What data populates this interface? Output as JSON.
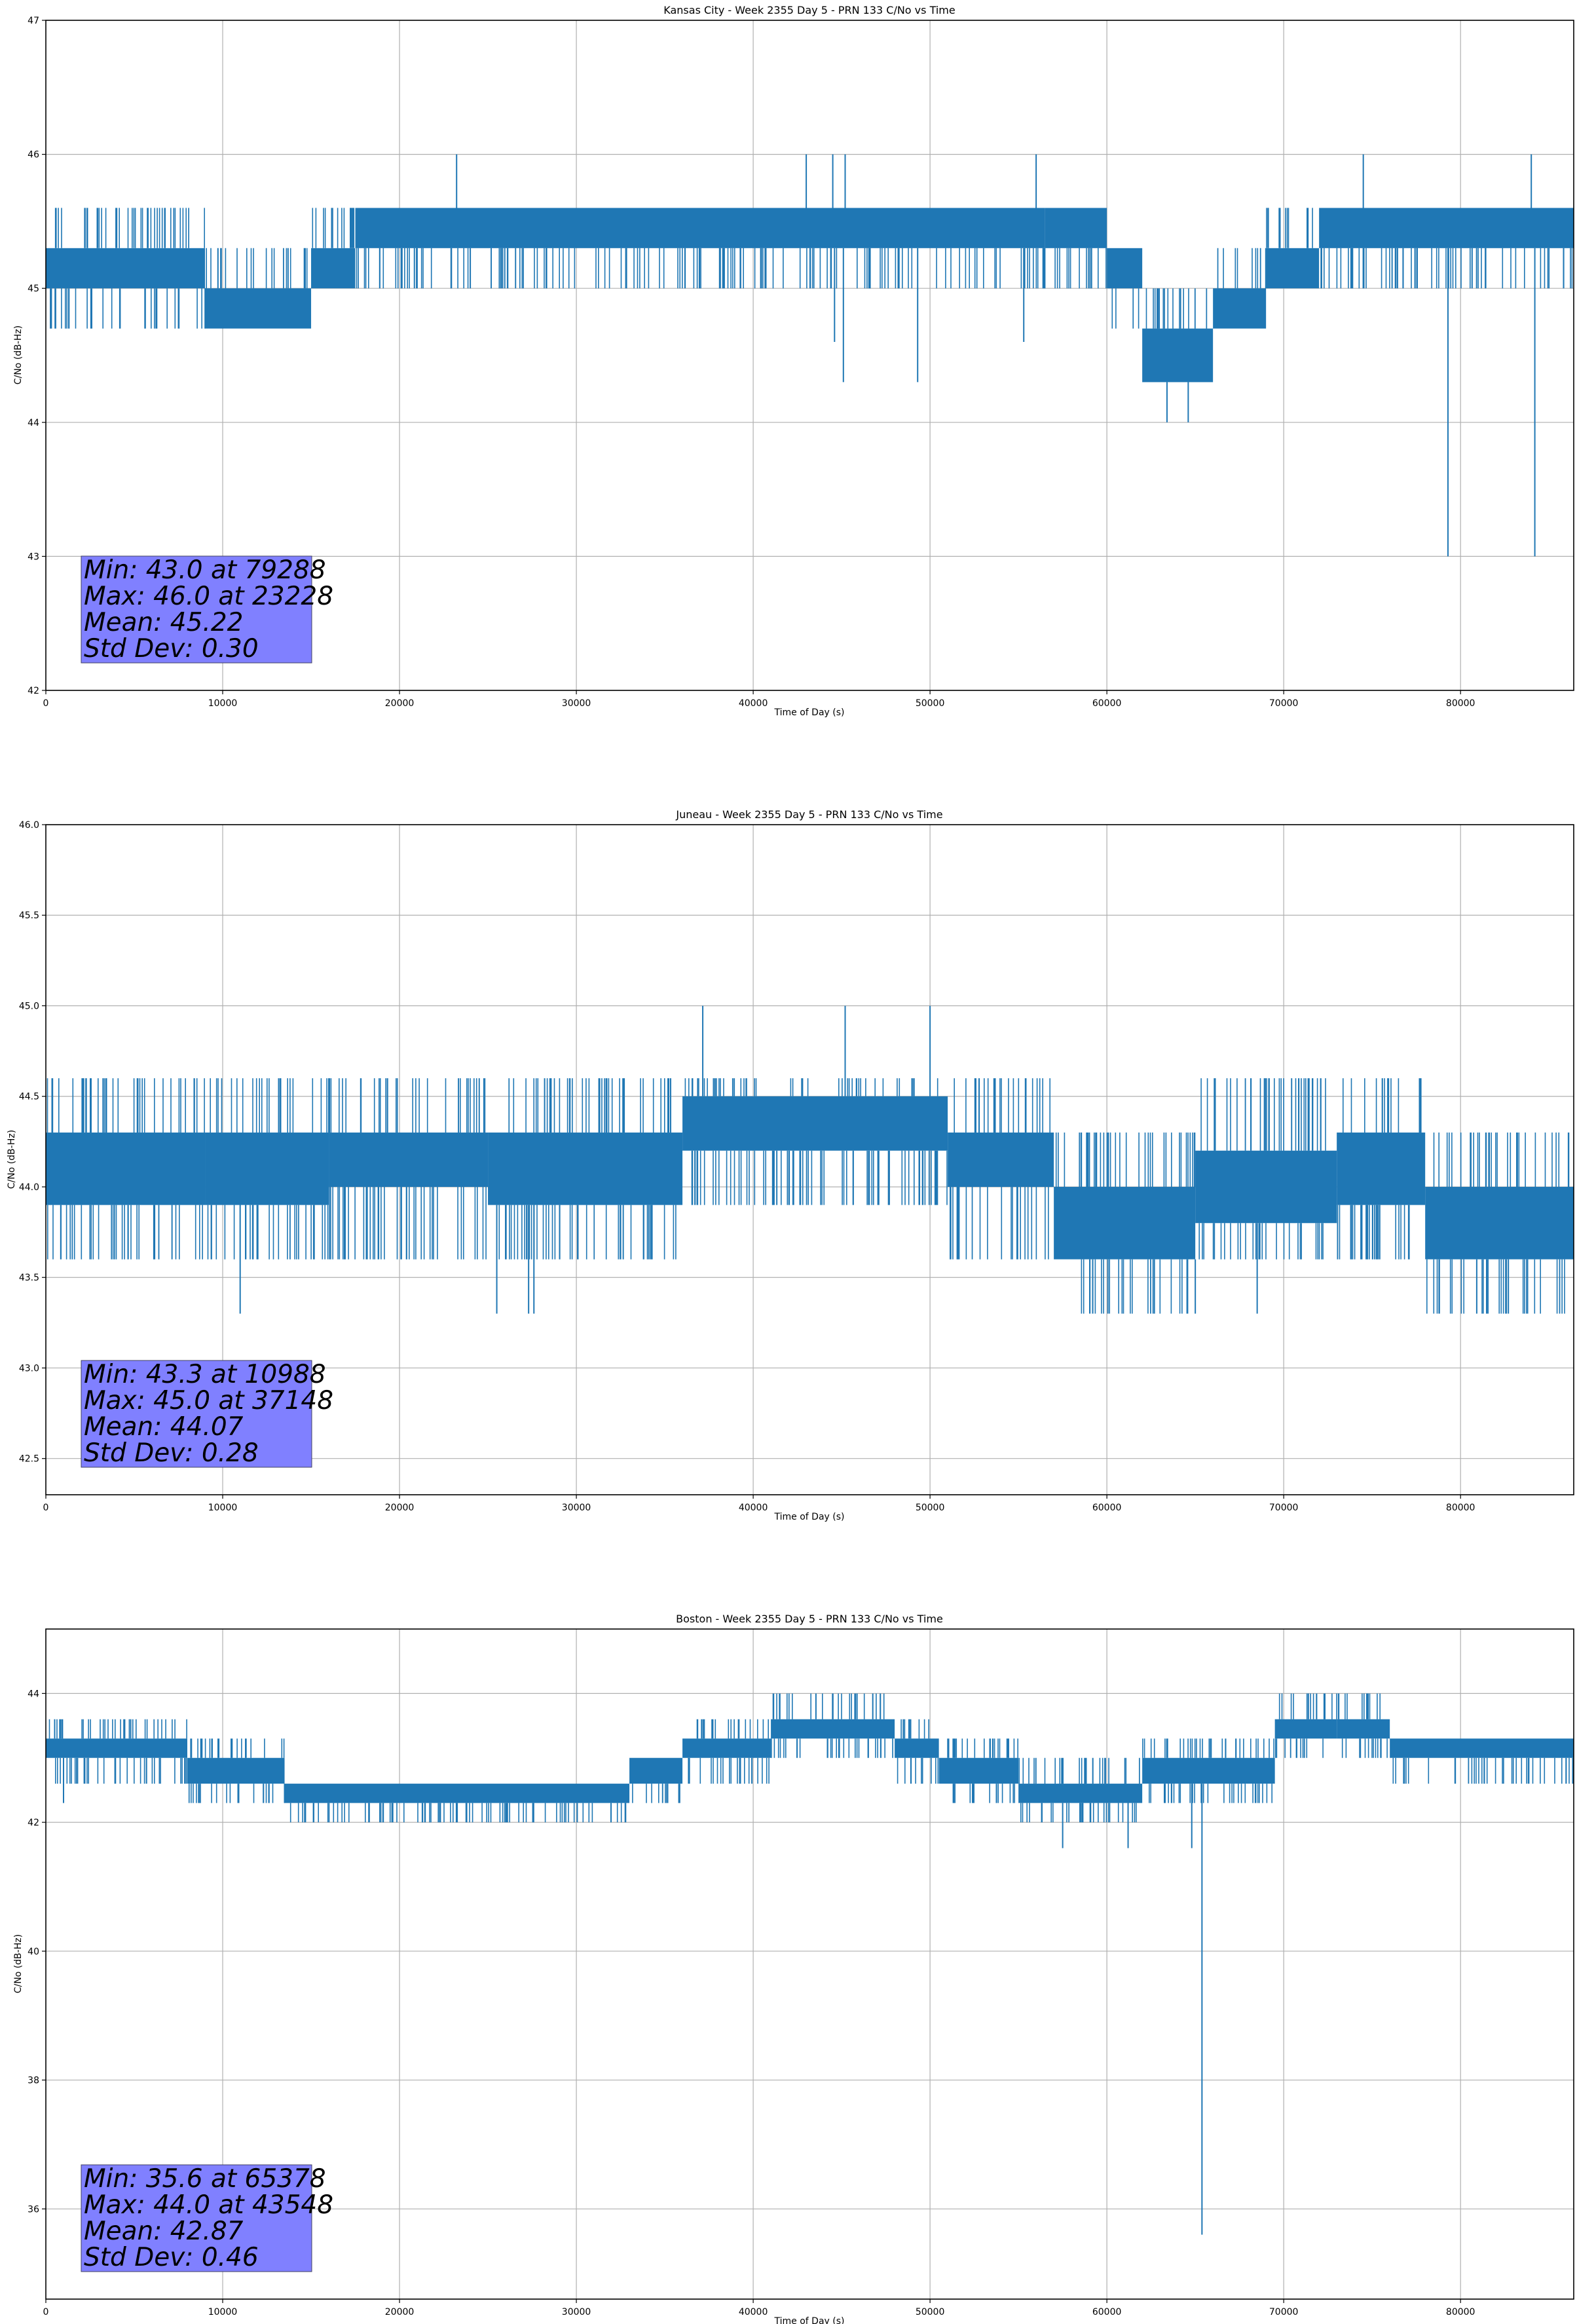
{
  "chart_data": [
    {
      "type": "line",
      "title": "Kansas City - Week 2355 Day 5 - PRN 133 C/No vs Time",
      "xlabel": "Time of Day (s)",
      "ylabel": "C/No (dB-Hz)",
      "xlim": [
        0,
        86400
      ],
      "ylim": [
        42,
        47
      ],
      "xticks": [
        0,
        10000,
        20000,
        30000,
        40000,
        50000,
        60000,
        70000,
        80000
      ],
      "yticks": [
        42,
        43,
        44,
        45,
        46,
        47
      ],
      "ytick_labels": [
        "42",
        "43",
        "44",
        "45",
        "46",
        "47"
      ],
      "grid": true,
      "color": "#1f77b4",
      "quantum": 0.3,
      "bands": [
        {
          "x": [
            0,
            9000
          ],
          "lo": 45.0,
          "hi": 45.3,
          "up": 45.6,
          "down": 44.7
        },
        {
          "x": [
            9000,
            15000
          ],
          "lo": 44.7,
          "hi": 45.0,
          "up": 45.3,
          "down": 44.7
        },
        {
          "x": [
            15000,
            17500
          ],
          "lo": 45.0,
          "hi": 45.3,
          "up": 45.6,
          "down": 45.0
        },
        {
          "x": [
            17500,
            56500
          ],
          "lo": 45.3,
          "hi": 45.6,
          "up": 45.6,
          "down": 45.0
        },
        {
          "x": [
            56500,
            60000
          ],
          "lo": 45.3,
          "hi": 45.6,
          "up": 45.6,
          "down": 45.0
        },
        {
          "x": [
            60000,
            62000
          ],
          "lo": 45.0,
          "hi": 45.3,
          "up": 45.3,
          "down": 44.7
        },
        {
          "x": [
            62000,
            66000
          ],
          "lo": 44.3,
          "hi": 44.7,
          "up": 45.0,
          "down": 44.3
        },
        {
          "x": [
            66000,
            69000
          ],
          "lo": 44.7,
          "hi": 45.0,
          "up": 45.3,
          "down": 44.7
        },
        {
          "x": [
            69000,
            72000
          ],
          "lo": 45.0,
          "hi": 45.3,
          "up": 45.6,
          "down": 45.0
        },
        {
          "x": [
            72000,
            86400
          ],
          "lo": 45.3,
          "hi": 45.6,
          "up": 45.6,
          "down": 45.0
        }
      ],
      "spikes": [
        {
          "x": 23228,
          "y": 46.0
        },
        {
          "x": 43000,
          "y": 46.0
        },
        {
          "x": 44500,
          "y": 46.0
        },
        {
          "x": 45200,
          "y": 46.0
        },
        {
          "x": 56000,
          "y": 46.0
        },
        {
          "x": 74500,
          "y": 46.0
        },
        {
          "x": 84000,
          "y": 46.0
        },
        {
          "x": 44600,
          "y": 44.6
        },
        {
          "x": 45100,
          "y": 44.3
        },
        {
          "x": 49300,
          "y": 44.3
        },
        {
          "x": 55300,
          "y": 44.6
        },
        {
          "x": 62800,
          "y": 44.3
        },
        {
          "x": 63400,
          "y": 44.0
        },
        {
          "x": 64600,
          "y": 44.0
        },
        {
          "x": 65800,
          "y": 44.3
        },
        {
          "x": 79288,
          "y": 43.0
        },
        {
          "x": 84200,
          "y": 43.0
        }
      ],
      "stats": [
        "Min: 43.0 at 79288",
        "Max: 46.0 at 23228",
        "Mean: 45.22",
        "Std Dev: 0.30"
      ]
    },
    {
      "type": "line",
      "title": "Juneau - Week 2355 Day 5 - PRN 133 C/No vs Time",
      "xlabel": "Time of Day (s)",
      "ylabel": "C/No (dB-Hz)",
      "xlim": [
        0,
        86400
      ],
      "ylim": [
        42.3,
        46.0
      ],
      "xticks": [
        0,
        10000,
        20000,
        30000,
        40000,
        50000,
        60000,
        70000,
        80000
      ],
      "yticks": [
        42.5,
        43.0,
        43.5,
        44.0,
        44.5,
        45.0,
        45.5,
        46.0
      ],
      "ytick_labels": [
        "42.5",
        "43.0",
        "43.5",
        "44.0",
        "44.5",
        "45.0",
        "45.5",
        "46.0"
      ],
      "grid": true,
      "color": "#1f77b4",
      "quantum": 0.3,
      "bands": [
        {
          "x": [
            0,
            9000
          ],
          "lo": 43.9,
          "hi": 44.3,
          "up": 44.6,
          "down": 43.6
        },
        {
          "x": [
            9000,
            16000
          ],
          "lo": 43.9,
          "hi": 44.3,
          "up": 44.6,
          "down": 43.6
        },
        {
          "x": [
            16000,
            25000
          ],
          "lo": 44.0,
          "hi": 44.3,
          "up": 44.6,
          "down": 43.6
        },
        {
          "x": [
            25000,
            36000
          ],
          "lo": 43.9,
          "hi": 44.3,
          "up": 44.6,
          "down": 43.6
        },
        {
          "x": [
            36000,
            51000
          ],
          "lo": 44.2,
          "hi": 44.5,
          "up": 44.6,
          "down": 43.9
        },
        {
          "x": [
            51000,
            57000
          ],
          "lo": 44.0,
          "hi": 44.3,
          "up": 44.6,
          "down": 43.6
        },
        {
          "x": [
            57000,
            65000
          ],
          "lo": 43.6,
          "hi": 44.0,
          "up": 44.3,
          "down": 43.3
        },
        {
          "x": [
            65000,
            73000
          ],
          "lo": 43.8,
          "hi": 44.2,
          "up": 44.6,
          "down": 43.6
        },
        {
          "x": [
            73000,
            78000
          ],
          "lo": 43.9,
          "hi": 44.3,
          "up": 44.6,
          "down": 43.6
        },
        {
          "x": [
            78000,
            86400
          ],
          "lo": 43.6,
          "hi": 44.0,
          "up": 44.3,
          "down": 43.3
        }
      ],
      "spikes": [
        {
          "x": 10988,
          "y": 43.3
        },
        {
          "x": 37148,
          "y": 45.0
        },
        {
          "x": 45200,
          "y": 45.0
        },
        {
          "x": 50000,
          "y": 45.0
        },
        {
          "x": 25500,
          "y": 43.3
        },
        {
          "x": 27300,
          "y": 43.3
        },
        {
          "x": 27600,
          "y": 43.3
        },
        {
          "x": 59200,
          "y": 43.3
        },
        {
          "x": 68500,
          "y": 43.3
        },
        {
          "x": 65000,
          "y": 43.3
        }
      ],
      "stats": [
        "Min: 43.3 at 10988",
        "Max: 45.0 at 37148",
        "Mean: 44.07",
        "Std Dev: 0.28"
      ]
    },
    {
      "type": "line",
      "title": "Boston - Week 2355 Day 5 - PRN 133 C/No vs Time",
      "xlabel": "Time of Day (s)",
      "ylabel": "C/No (dB-Hz)",
      "xlim": [
        0,
        86400
      ],
      "ylim": [
        34.6,
        45.0
      ],
      "xticks": [
        0,
        10000,
        20000,
        30000,
        40000,
        50000,
        60000,
        70000,
        80000
      ],
      "yticks": [
        36,
        38,
        40,
        42,
        44
      ],
      "ytick_labels": [
        "36",
        "38",
        "40",
        "42",
        "44"
      ],
      "grid": true,
      "color": "#1f77b4",
      "quantum": 0.3,
      "bands": [
        {
          "x": [
            0,
            8000
          ],
          "lo": 43.0,
          "hi": 43.3,
          "up": 43.6,
          "down": 42.6
        },
        {
          "x": [
            8000,
            13500
          ],
          "lo": 42.6,
          "hi": 43.0,
          "up": 43.3,
          "down": 42.3
        },
        {
          "x": [
            13500,
            33000
          ],
          "lo": 42.3,
          "hi": 42.6,
          "up": 42.6,
          "down": 42.0
        },
        {
          "x": [
            33000,
            36000
          ],
          "lo": 42.6,
          "hi": 43.0,
          "up": 43.0,
          "down": 42.3
        },
        {
          "x": [
            36000,
            41000
          ],
          "lo": 43.0,
          "hi": 43.3,
          "up": 43.6,
          "down": 42.6
        },
        {
          "x": [
            41000,
            48000
          ],
          "lo": 43.3,
          "hi": 43.6,
          "up": 44.0,
          "down": 43.0
        },
        {
          "x": [
            48000,
            50500
          ],
          "lo": 43.0,
          "hi": 43.3,
          "up": 43.6,
          "down": 42.6
        },
        {
          "x": [
            50500,
            55000
          ],
          "lo": 42.6,
          "hi": 43.0,
          "up": 43.3,
          "down": 42.3
        },
        {
          "x": [
            55000,
            62000
          ],
          "lo": 42.3,
          "hi": 42.6,
          "up": 43.0,
          "down": 42.0
        },
        {
          "x": [
            62000,
            69500
          ],
          "lo": 42.6,
          "hi": 43.0,
          "up": 43.3,
          "down": 42.3
        },
        {
          "x": [
            69500,
            73000
          ],
          "lo": 43.3,
          "hi": 43.6,
          "up": 44.0,
          "down": 43.0
        },
        {
          "x": [
            73000,
            76000
          ],
          "lo": 43.3,
          "hi": 43.6,
          "up": 44.0,
          "down": 43.0
        },
        {
          "x": [
            76000,
            86400
          ],
          "lo": 43.0,
          "hi": 43.3,
          "up": 43.3,
          "down": 42.6
        }
      ],
      "spikes": [
        {
          "x": 65378,
          "y": 35.6
        },
        {
          "x": 43548,
          "y": 44.0
        },
        {
          "x": 500,
          "y": 43.6
        },
        {
          "x": 4800,
          "y": 43.6
        },
        {
          "x": 1000,
          "y": 42.3
        },
        {
          "x": 57500,
          "y": 41.6
        },
        {
          "x": 61200,
          "y": 41.6
        },
        {
          "x": 64800,
          "y": 41.6
        }
      ],
      "stats": [
        "Min: 35.6 at 65378",
        "Max: 44.0 at 43548",
        "Mean: 42.87",
        "Std Dev: 0.46"
      ]
    }
  ]
}
